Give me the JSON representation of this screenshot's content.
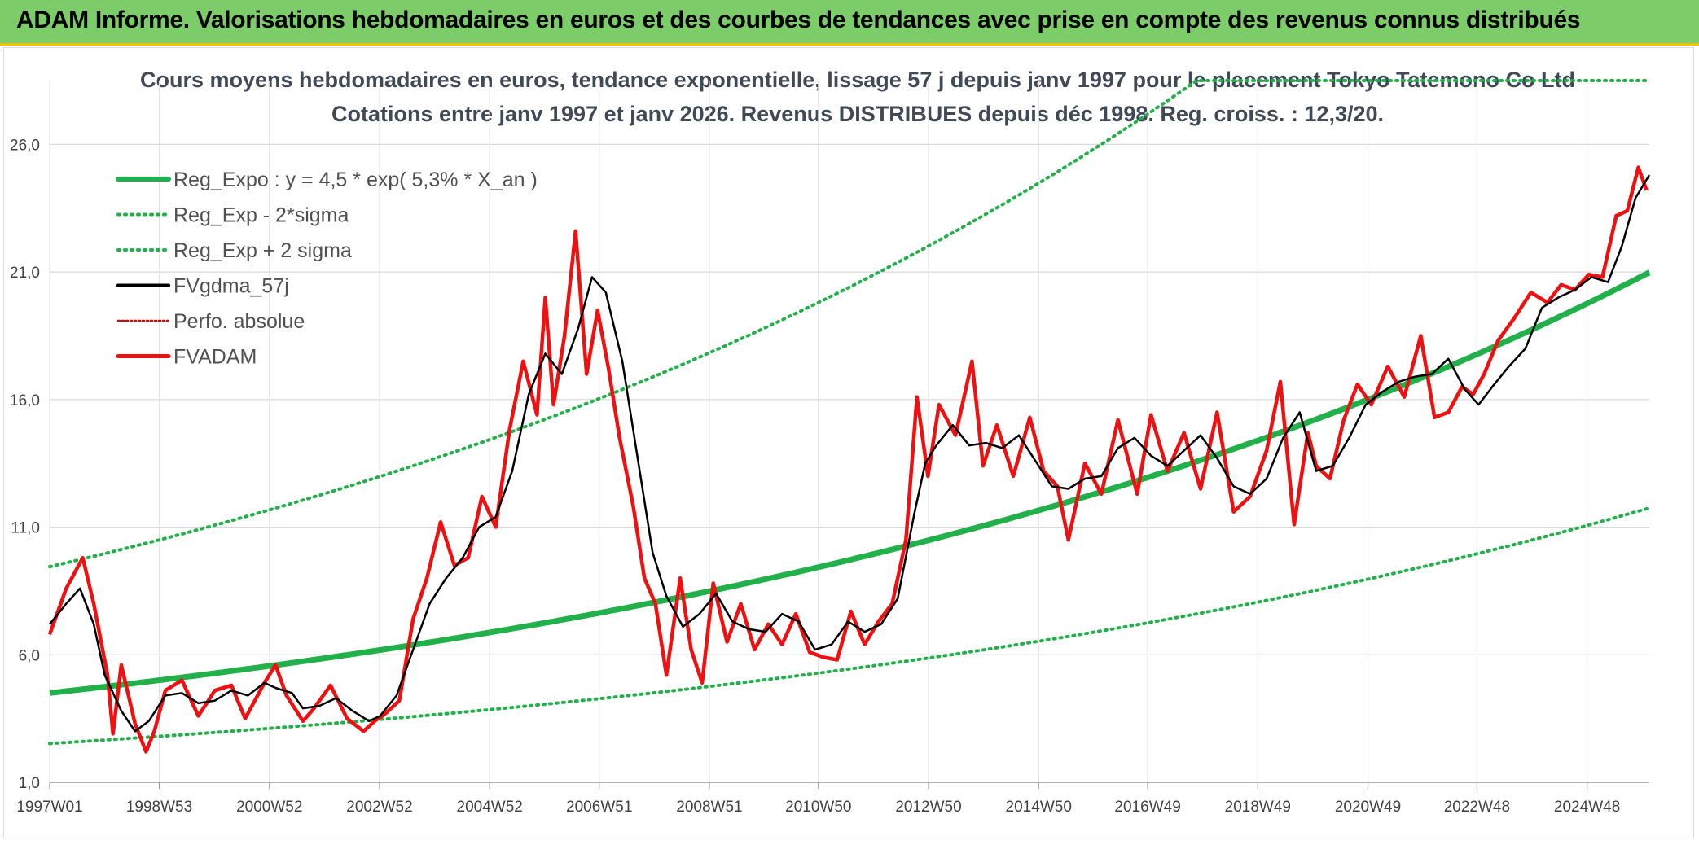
{
  "banner": {
    "title": "ADAM Informe. Valorisations hebdomadaires en euros et des courbes de tendances avec prise en compte des revenus connus distribués"
  },
  "chart_data": {
    "type": "line",
    "title_line1": "Cours moyens hebdomadaires en euros, tendance exponentielle, lissage 57 j depuis janv 1997 pour le placement Tokyo Tatemono Co Ltd",
    "title_line2": "Cotations entre janv 1997 et janv 2026. Revenus DISTRIBUES depuis déc 1998. Reg. croiss. : 12,3/20.",
    "xlabel": "",
    "ylabel": "",
    "ylim": [
      1.0,
      28.5
    ],
    "xlim": [
      1997.0,
      2026.05
    ],
    "yticks": [
      1.0,
      6.0,
      11.0,
      16.0,
      21.0,
      26.0
    ],
    "ytick_labels": [
      "1,0",
      "6,0",
      "11,0",
      "16,0",
      "21,0",
      "26,0"
    ],
    "xticks": [
      1997.0,
      1998.99,
      2000.99,
      2002.99,
      2004.99,
      2006.98,
      2008.98,
      2010.96,
      2012.96,
      2014.96,
      2016.94,
      2018.94,
      2020.94,
      2022.92,
      2024.92
    ],
    "xtick_labels": [
      "1997W01",
      "1998W53",
      "2000W52",
      "2002W52",
      "2004W52",
      "2006W51",
      "2008W51",
      "2010W50",
      "2012W50",
      "2014W50",
      "2016W49",
      "2018W49",
      "2020W49",
      "2022W48",
      "2024W48"
    ],
    "grid": true,
    "legend_position": "top-left",
    "regression": {
      "a": 4.5,
      "rate": 0.053,
      "factor_minus": 0.56,
      "factor_plus": 2.1
    },
    "series": [
      {
        "name": "Reg_Expo : y = 4,5 * exp( 5,3% *  X_an )",
        "color": "#22b04a",
        "style": "solid-thick"
      },
      {
        "name": "Reg_Exp - 2*sigma",
        "color": "#22b04a",
        "style": "dotted"
      },
      {
        "name": "Reg_Exp + 2 sigma",
        "color": "#22b04a",
        "style": "dotted"
      },
      {
        "name": "FVgdma_57j",
        "color": "#000000",
        "style": "solid",
        "x": [
          1997.0,
          1997.3,
          1997.55,
          1997.8,
          1998.0,
          1998.3,
          1998.55,
          1998.8,
          1999.1,
          1999.4,
          1999.7,
          2000.0,
          2000.3,
          2000.6,
          2000.9,
          2001.1,
          2001.4,
          2001.6,
          2001.9,
          2002.2,
          2002.5,
          2002.8,
          2003.0,
          2003.3,
          2003.6,
          2003.9,
          2004.2,
          2004.5,
          2004.8,
          2005.1,
          2005.4,
          2005.7,
          2006.0,
          2006.3,
          2006.6,
          2006.85,
          2007.1,
          2007.4,
          2007.7,
          2007.95,
          2008.2,
          2008.5,
          2008.8,
          2009.1,
          2009.4,
          2009.7,
          2010.0,
          2010.3,
          2010.6,
          2010.9,
          2011.2,
          2011.5,
          2011.8,
          2012.1,
          2012.4,
          2012.7,
          2012.9,
          2013.1,
          2013.4,
          2013.7,
          2014.0,
          2014.3,
          2014.6,
          2014.9,
          2015.2,
          2015.5,
          2015.8,
          2016.1,
          2016.4,
          2016.7,
          2017.0,
          2017.3,
          2017.6,
          2017.9,
          2018.2,
          2018.5,
          2018.8,
          2019.1,
          2019.4,
          2019.7,
          2020.0,
          2020.3,
          2020.6,
          2020.9,
          2021.2,
          2021.5,
          2021.8,
          2022.1,
          2022.4,
          2022.7,
          2022.95,
          2023.2,
          2023.5,
          2023.8,
          2024.1,
          2024.4,
          2024.7,
          2025.0,
          2025.3,
          2025.55,
          2025.8,
          2026.05
        ],
        "y": [
          7.2,
          8.0,
          8.6,
          7.2,
          5.2,
          3.8,
          3.0,
          3.4,
          4.4,
          4.5,
          4.1,
          4.2,
          4.6,
          4.4,
          4.9,
          4.7,
          4.5,
          3.9,
          4.0,
          4.3,
          3.8,
          3.4,
          3.6,
          4.4,
          6.2,
          8.0,
          9.0,
          9.8,
          11.0,
          11.4,
          13.2,
          16.2,
          17.8,
          17.0,
          18.8,
          20.8,
          20.2,
          17.5,
          13.4,
          10.0,
          8.3,
          7.1,
          7.6,
          8.4,
          7.3,
          7.0,
          6.9,
          7.6,
          7.3,
          6.2,
          6.4,
          7.3,
          6.9,
          7.2,
          8.2,
          11.5,
          13.5,
          14.2,
          15.0,
          14.2,
          14.3,
          14.1,
          14.6,
          13.6,
          12.6,
          12.5,
          12.9,
          13.0,
          14.1,
          14.5,
          13.8,
          13.4,
          14.0,
          14.6,
          13.7,
          12.6,
          12.3,
          12.9,
          14.5,
          15.5,
          13.2,
          13.4,
          14.5,
          15.8,
          16.3,
          16.7,
          16.9,
          17.0,
          17.6,
          16.4,
          15.8,
          16.5,
          17.3,
          18.0,
          19.6,
          20.0,
          20.3,
          20.8,
          20.6,
          22.0,
          23.9,
          24.8
        ]
      },
      {
        "name": "Perfo. absolue",
        "color": "#e00000",
        "style": "dotted"
      },
      {
        "name": "FVADAM",
        "color": "#ee1111",
        "style": "solid-thick",
        "x": [
          1997.0,
          1997.3,
          1997.6,
          1997.8,
          1998.05,
          1998.15,
          1998.3,
          1998.55,
          1998.75,
          1998.9,
          1999.1,
          1999.4,
          1999.7,
          2000.0,
          2000.3,
          2000.55,
          2000.9,
          2001.1,
          2001.3,
          2001.6,
          2001.8,
          2002.1,
          2002.4,
          2002.7,
          2002.9,
          2003.1,
          2003.35,
          2003.6,
          2003.85,
          2004.1,
          2004.35,
          2004.6,
          2004.85,
          2005.1,
          2005.35,
          2005.6,
          2005.85,
          2006.0,
          2006.15,
          2006.35,
          2006.55,
          2006.75,
          2006.95,
          2007.15,
          2007.35,
          2007.6,
          2007.8,
          2008.0,
          2008.2,
          2008.45,
          2008.65,
          2008.85,
          2009.05,
          2009.3,
          2009.55,
          2009.8,
          2010.05,
          2010.3,
          2010.55,
          2010.8,
          2011.05,
          2011.3,
          2011.55,
          2011.8,
          2012.05,
          2012.3,
          2012.55,
          2012.75,
          2012.95,
          2013.15,
          2013.45,
          2013.75,
          2013.95,
          2014.2,
          2014.5,
          2014.8,
          2015.05,
          2015.3,
          2015.5,
          2015.8,
          2016.1,
          2016.4,
          2016.75,
          2017.0,
          2017.3,
          2017.6,
          2017.9,
          2018.2,
          2018.5,
          2018.8,
          2019.1,
          2019.35,
          2019.6,
          2019.85,
          2020.0,
          2020.25,
          2020.5,
          2020.75,
          2021.0,
          2021.3,
          2021.6,
          2021.9,
          2022.15,
          2022.4,
          2022.65,
          2022.85,
          2023.05,
          2023.3,
          2023.6,
          2023.9,
          2024.2,
          2024.45,
          2024.7,
          2024.95,
          2025.2,
          2025.45,
          2025.65,
          2025.85,
          2026.0
        ],
        "y": [
          6.8,
          8.6,
          9.8,
          8.0,
          5.2,
          2.9,
          5.6,
          3.3,
          2.2,
          3.0,
          4.6,
          5.0,
          3.6,
          4.6,
          4.8,
          3.5,
          4.9,
          5.6,
          4.4,
          3.4,
          3.9,
          4.8,
          3.5,
          3.0,
          3.4,
          3.7,
          4.2,
          7.4,
          9.0,
          11.2,
          9.5,
          9.8,
          12.2,
          11.0,
          14.8,
          17.5,
          15.4,
          20.0,
          15.8,
          18.5,
          22.6,
          17.0,
          19.5,
          17.2,
          14.5,
          11.8,
          9.0,
          8.0,
          5.2,
          9.0,
          6.2,
          4.9,
          8.8,
          6.5,
          8.0,
          6.2,
          7.2,
          6.4,
          7.6,
          6.1,
          5.9,
          5.8,
          7.7,
          6.4,
          7.3,
          8.0,
          10.5,
          16.1,
          13.0,
          15.8,
          14.6,
          17.5,
          13.4,
          15.0,
          13.0,
          15.3,
          13.2,
          12.6,
          10.5,
          13.5,
          12.3,
          15.2,
          12.3,
          15.4,
          13.2,
          14.7,
          12.5,
          15.5,
          11.6,
          12.2,
          14.0,
          16.7,
          11.1,
          14.7,
          13.4,
          12.9,
          15.2,
          16.6,
          15.8,
          17.3,
          16.1,
          18.5,
          15.3,
          15.5,
          16.5,
          16.2,
          17.0,
          18.3,
          19.2,
          20.2,
          19.8,
          20.5,
          20.3,
          20.9,
          20.8,
          23.2,
          23.4,
          25.1,
          24.2
        ]
      }
    ]
  }
}
